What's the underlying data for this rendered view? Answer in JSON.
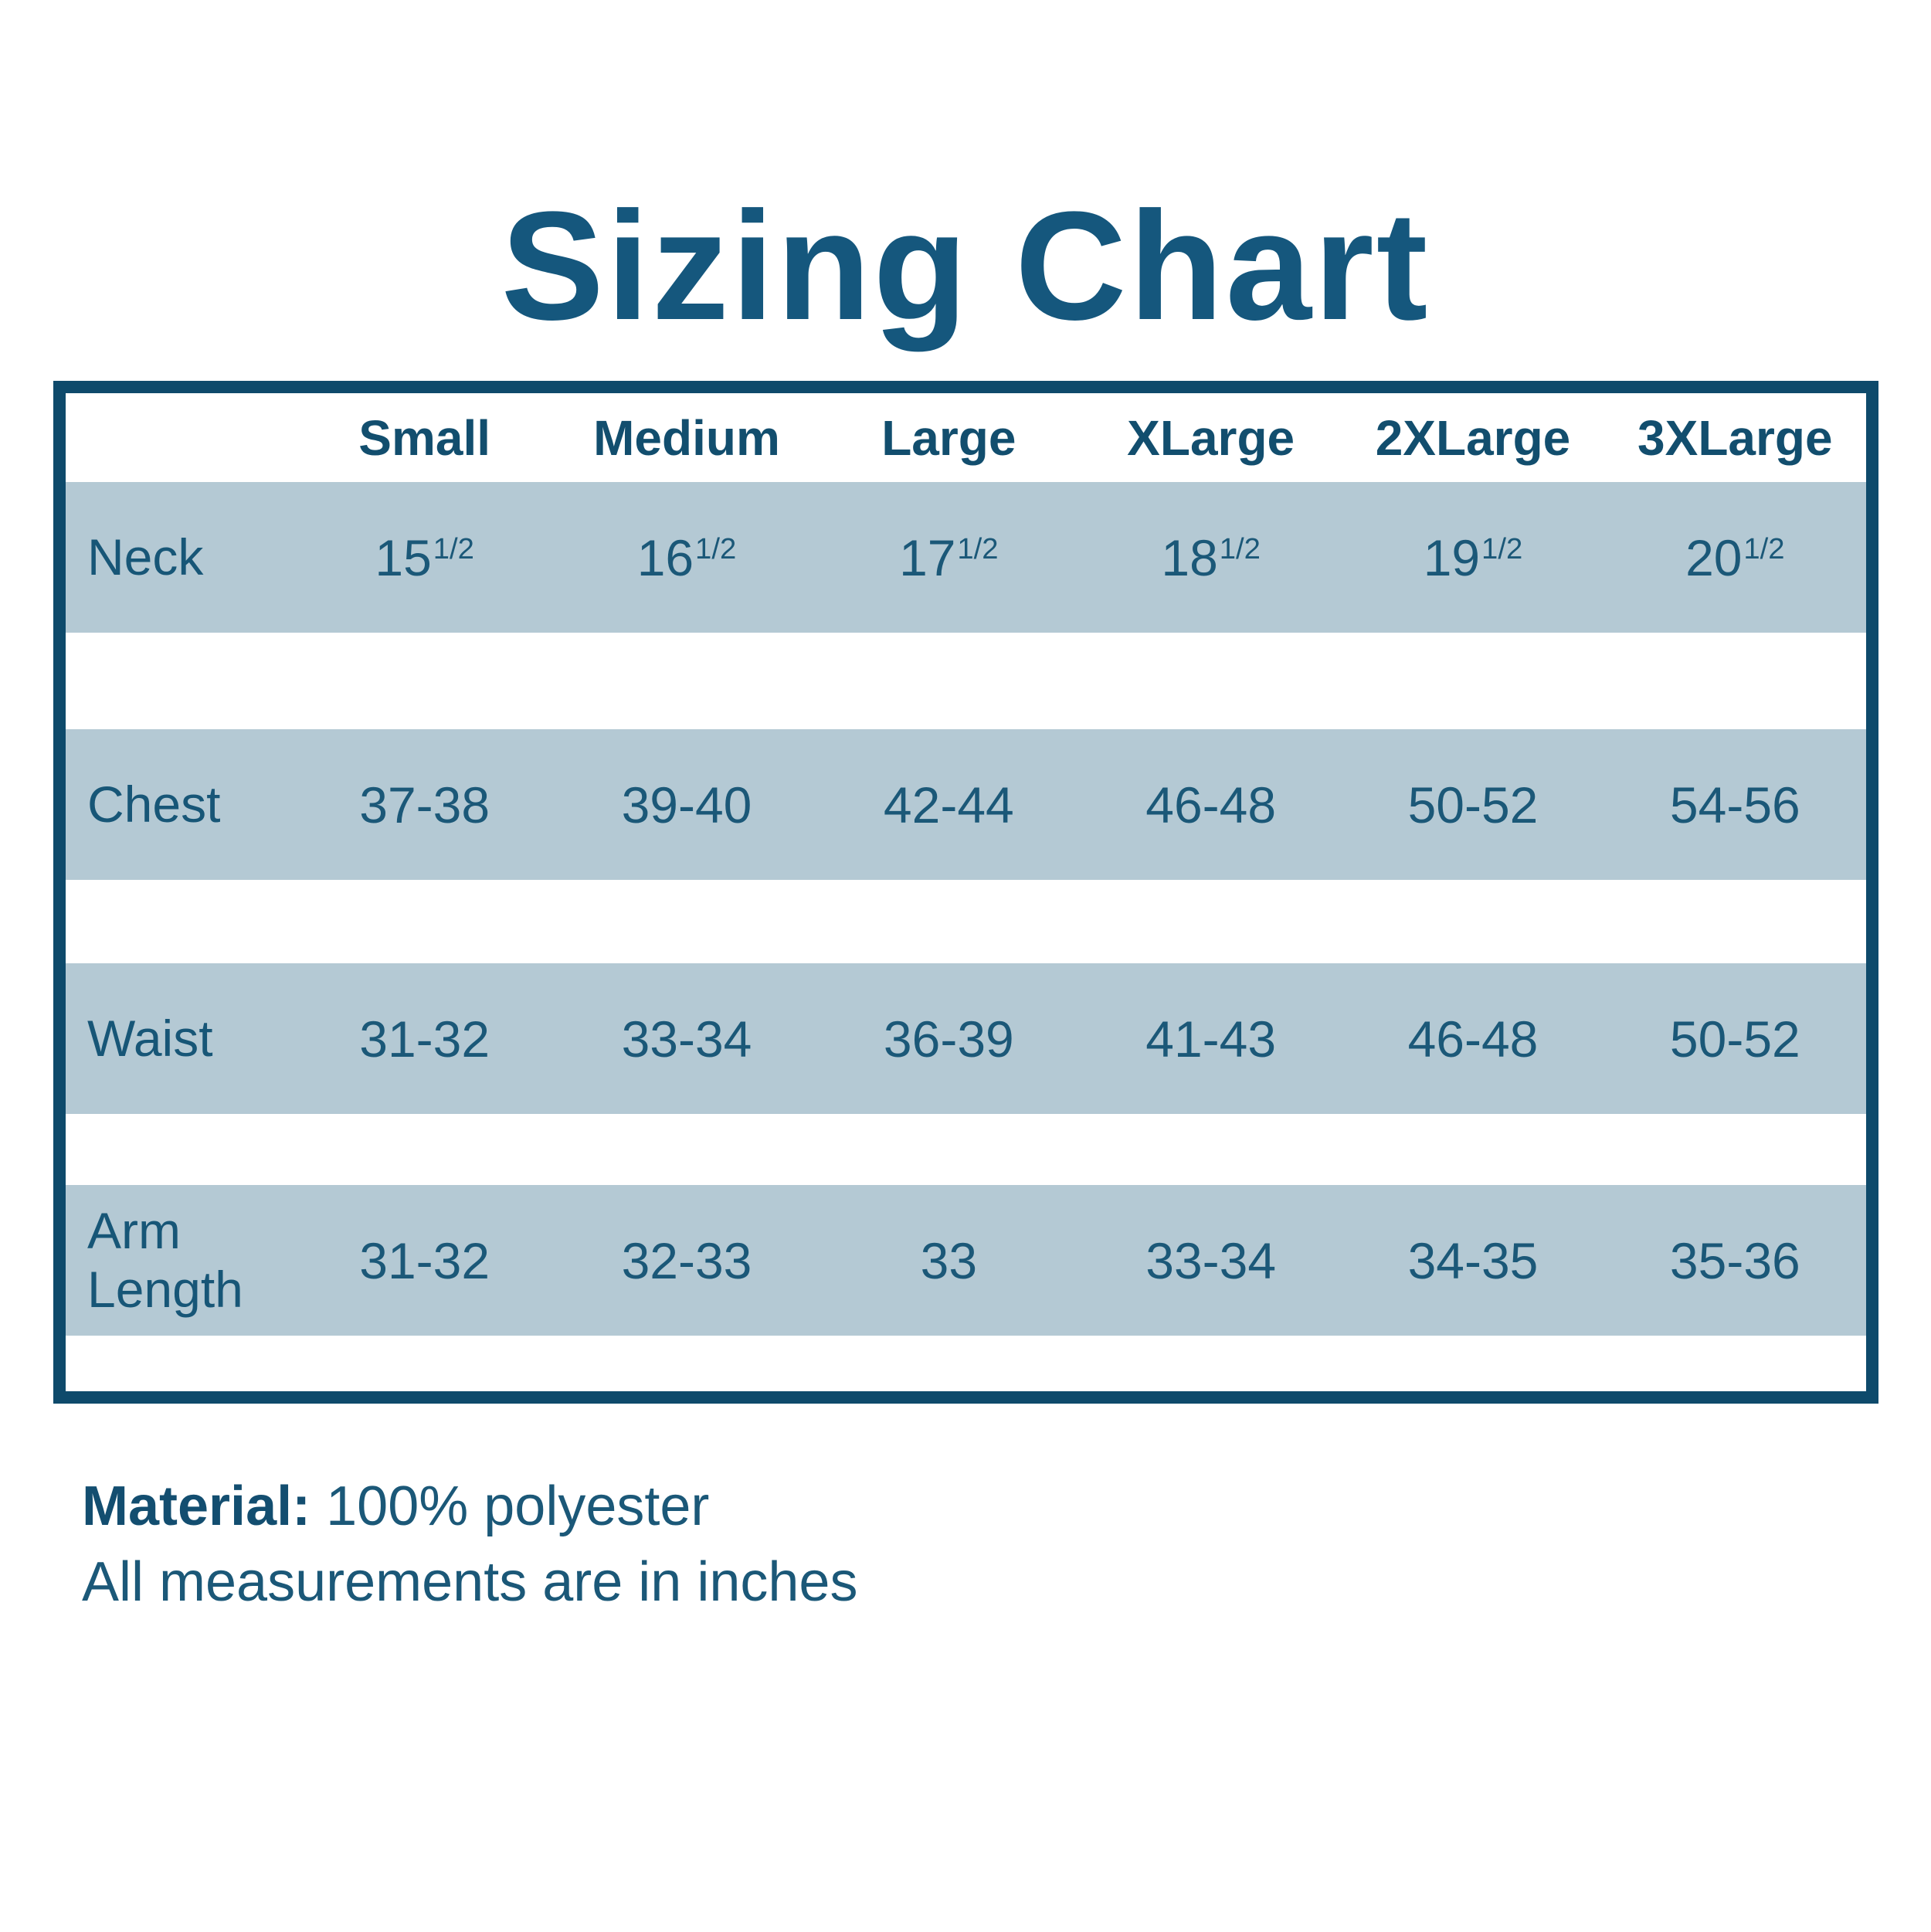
{
  "chart_data": {
    "type": "table",
    "title": "Sizing Chart",
    "columns": [
      "Small",
      "Medium",
      "Large",
      "XLarge",
      "2XLarge",
      "3XLarge"
    ],
    "rows": [
      {
        "label": "Neck",
        "values": [
          "15 1/2",
          "16 1/2",
          "17 1/2",
          "18 1/2",
          "19 1/2",
          "20 1/2"
        ]
      },
      {
        "label": "Chest",
        "values": [
          "37-38",
          "39-40",
          "42-44",
          "46-48",
          "50-52",
          "54-56"
        ]
      },
      {
        "label": "Waist",
        "values": [
          "31-32",
          "33-34",
          "36-39",
          "41-43",
          "46-48",
          "50-52"
        ]
      },
      {
        "label": "Arm Length",
        "values": [
          "31-32",
          "32-33",
          "33",
          "33-34",
          "34-35",
          "35-36"
        ]
      }
    ]
  },
  "footer": {
    "material_label": "Material:",
    "material_value": "100% polyester",
    "note": "All measurements are in inches"
  },
  "colors": {
    "border_dark_blue": "#0e4a6b",
    "title_blue": "#15577d",
    "header_text_blue": "#124e6e",
    "value_text_blue": "#1b5878",
    "band_blue": "#b4c9d4",
    "background": "#ffffff"
  }
}
